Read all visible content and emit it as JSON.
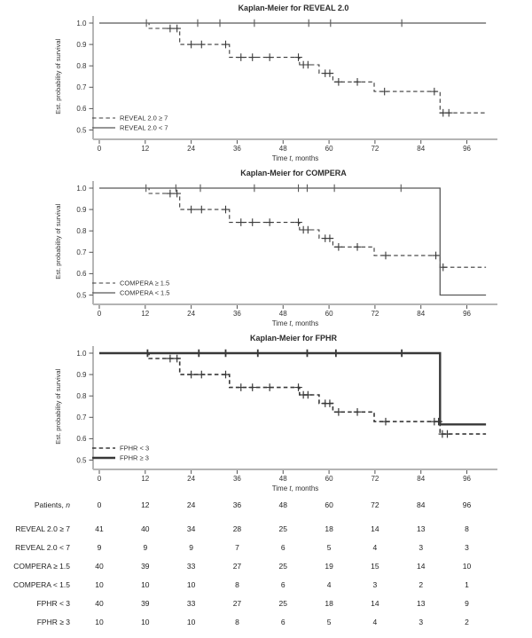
{
  "colors": {
    "ink": "#2b2b2b",
    "tick_text": "#333333",
    "y_axis": "#6e6e6e",
    "x_axis": "#b4b4b4",
    "tick_mark": "#555555",
    "dashed_line": "#3a3a3a",
    "solid_line": "#585858",
    "table_text": "#222222"
  },
  "chart_data": [
    {
      "type": "line",
      "subtype": "kaplan-meier-step",
      "title": "Kaplan-Meier for REVEAL 2.0",
      "ylabel": "Est. probability of survival",
      "xlabel": {
        "pre": "Time ",
        "var": "t",
        "post": ", months"
      },
      "xticks": [
        0,
        12,
        24,
        36,
        48,
        60,
        72,
        84,
        96
      ],
      "yticks": [
        "1.0",
        "0.9",
        "0.8",
        "0.7",
        "0.6",
        "0.5"
      ],
      "xlim": [
        0,
        101
      ],
      "ylim": [
        0.5,
        1.0
      ],
      "grid": false,
      "legend_position": "inside-bottom-left",
      "legend": [
        {
          "label": "REVEAL 2.0 ≥ 7",
          "style": "dashed"
        },
        {
          "label": "REVEAL 2.0 < 7",
          "style": "solid"
        }
      ],
      "series": [
        {
          "name": "REVEAL 2.0 ≥ 7",
          "style": "dashed",
          "lw": 1.1,
          "color": "#3a3a3a",
          "steps": [
            [
              0,
              1.0
            ],
            [
              13,
              1.0
            ],
            [
              13,
              0.975
            ],
            [
              21,
              0.975
            ],
            [
              21,
              0.9
            ],
            [
              34,
              0.9
            ],
            [
              34,
              0.84
            ],
            [
              52.3,
              0.84
            ],
            [
              52.3,
              0.805
            ],
            [
              57.4,
              0.805
            ],
            [
              57.4,
              0.765
            ],
            [
              61,
              0.765
            ],
            [
              61,
              0.725
            ],
            [
              71.8,
              0.725
            ],
            [
              71.8,
              0.68
            ],
            [
              89,
              0.68
            ],
            [
              89,
              0.58
            ],
            [
              101,
              0.58
            ]
          ],
          "censors": [
            [
              18.5,
              0.975
            ],
            [
              20.3,
              0.975
            ],
            [
              24,
              0.9
            ],
            [
              26.7,
              0.9
            ],
            [
              33,
              0.9
            ],
            [
              37,
              0.84
            ],
            [
              40,
              0.84
            ],
            [
              44.5,
              0.84
            ],
            [
              52,
              0.84
            ],
            [
              53.3,
              0.805
            ],
            [
              54.5,
              0.805
            ],
            [
              59,
              0.765
            ],
            [
              60.2,
              0.765
            ],
            [
              62.5,
              0.725
            ],
            [
              67.4,
              0.725
            ],
            [
              74.5,
              0.68
            ],
            [
              87.5,
              0.68
            ],
            [
              89.8,
              0.58
            ],
            [
              91.3,
              0.58
            ]
          ]
        },
        {
          "name": "REVEAL 2.0 < 7",
          "style": "solid",
          "lw": 1.3,
          "color": "#585858",
          "steps": [
            [
              0,
              1.0
            ],
            [
              101,
              1.0
            ]
          ],
          "censors": [
            [
              12.3,
              1.0
            ],
            [
              25.7,
              1.0
            ],
            [
              31.5,
              1.0
            ],
            [
              40.5,
              1.0
            ],
            [
              54.7,
              1.0
            ],
            [
              60.4,
              1.0
            ],
            [
              79,
              1.0
            ]
          ]
        }
      ]
    },
    {
      "type": "line",
      "subtype": "kaplan-meier-step",
      "title": "Kaplan-Meier for COMPERA",
      "ylabel": "Est. probability of survival",
      "xlabel": {
        "pre": "Time ",
        "var": "t",
        "post": ", months"
      },
      "xticks": [
        0,
        12,
        24,
        36,
        48,
        60,
        72,
        84,
        96
      ],
      "yticks": [
        "1.0",
        "0.9",
        "0.8",
        "0.7",
        "0.6",
        "0.5"
      ],
      "xlim": [
        0,
        101
      ],
      "ylim": [
        0.5,
        1.0
      ],
      "grid": false,
      "legend_position": "inside-bottom-left",
      "legend": [
        {
          "label": "COMPERA ≥ 1.5",
          "style": "dashed"
        },
        {
          "label": "COMPERA < 1.5",
          "style": "solid"
        }
      ],
      "series": [
        {
          "name": "COMPERA ≥ 1.5",
          "style": "dashed",
          "lw": 1.1,
          "color": "#3a3a3a",
          "steps": [
            [
              0,
              1.0
            ],
            [
              13,
              1.0
            ],
            [
              13,
              0.975
            ],
            [
              21,
              0.975
            ],
            [
              21,
              0.9
            ],
            [
              34,
              0.9
            ],
            [
              34,
              0.84
            ],
            [
              52.3,
              0.84
            ],
            [
              52.3,
              0.805
            ],
            [
              57.4,
              0.805
            ],
            [
              57.4,
              0.765
            ],
            [
              61,
              0.765
            ],
            [
              61,
              0.725
            ],
            [
              71.8,
              0.725
            ],
            [
              71.8,
              0.685
            ],
            [
              89,
              0.685
            ],
            [
              89,
              0.63
            ],
            [
              101,
              0.63
            ]
          ],
          "censors": [
            [
              18.5,
              0.975
            ],
            [
              20.3,
              0.975
            ],
            [
              24,
              0.9
            ],
            [
              26.7,
              0.9
            ],
            [
              33,
              0.9
            ],
            [
              37,
              0.84
            ],
            [
              40,
              0.84
            ],
            [
              44.5,
              0.84
            ],
            [
              52,
              0.84
            ],
            [
              53.3,
              0.805
            ],
            [
              54.5,
              0.805
            ],
            [
              59,
              0.765
            ],
            [
              60.2,
              0.765
            ],
            [
              62.5,
              0.725
            ],
            [
              67.4,
              0.725
            ],
            [
              74.8,
              0.685
            ],
            [
              87.9,
              0.685
            ],
            [
              89.8,
              0.63
            ]
          ]
        },
        {
          "name": "COMPERA < 1.5",
          "style": "solid",
          "lw": 1.3,
          "color": "#585858",
          "steps": [
            [
              0,
              1.0
            ],
            [
              89,
              1.0
            ],
            [
              89,
              0.5
            ],
            [
              101,
              0.5
            ]
          ],
          "censors": [
            [
              12.2,
              1.0
            ],
            [
              20,
              1.0
            ],
            [
              26.4,
              1.0
            ],
            [
              40.5,
              1.0
            ],
            [
              52,
              1.0
            ],
            [
              54.3,
              1.0
            ],
            [
              61.4,
              1.0
            ],
            [
              78.8,
              1.0
            ]
          ]
        }
      ]
    },
    {
      "type": "line",
      "subtype": "kaplan-meier-step",
      "title": "Kaplan-Meier for FPHR",
      "ylabel": "Est. probability of survival",
      "xlabel": {
        "pre": "Time ",
        "var": "t",
        "post": ", months"
      },
      "xticks": [
        0,
        12,
        24,
        36,
        48,
        60,
        72,
        84,
        96
      ],
      "yticks": [
        "1.0",
        "0.9",
        "0.8",
        "0.7",
        "0.6",
        "0.5"
      ],
      "xlim": [
        0,
        101
      ],
      "ylim": [
        0.5,
        1.0
      ],
      "grid": false,
      "legend_position": "inside-bottom-left",
      "legend": [
        {
          "label": "FPHR < 3",
          "style": "dashed"
        },
        {
          "label": "FPHR ≥ 3",
          "style": "solid"
        }
      ],
      "series": [
        {
          "name": "FPHR < 3",
          "style": "dashed",
          "lw": 1.6,
          "color": "#383838",
          "steps": [
            [
              0,
              1.0
            ],
            [
              13,
              1.0
            ],
            [
              13,
              0.975
            ],
            [
              21,
              0.975
            ],
            [
              21,
              0.9
            ],
            [
              34,
              0.9
            ],
            [
              34,
              0.84
            ],
            [
              52.3,
              0.84
            ],
            [
              52.3,
              0.805
            ],
            [
              57.4,
              0.805
            ],
            [
              57.4,
              0.765
            ],
            [
              61,
              0.765
            ],
            [
              61,
              0.725
            ],
            [
              71.8,
              0.725
            ],
            [
              71.8,
              0.68
            ],
            [
              89,
              0.68
            ],
            [
              89,
              0.622
            ],
            [
              101,
              0.622
            ]
          ],
          "censors": [
            [
              18.5,
              0.975
            ],
            [
              20.3,
              0.975
            ],
            [
              24,
              0.9
            ],
            [
              26.7,
              0.9
            ],
            [
              33,
              0.9
            ],
            [
              37,
              0.84
            ],
            [
              40,
              0.84
            ],
            [
              44.5,
              0.84
            ],
            [
              52,
              0.84
            ],
            [
              53.3,
              0.805
            ],
            [
              54.5,
              0.805
            ],
            [
              59,
              0.765
            ],
            [
              60.2,
              0.765
            ],
            [
              62.5,
              0.725
            ],
            [
              67.4,
              0.725
            ],
            [
              74.8,
              0.68
            ],
            [
              87.5,
              0.68
            ],
            [
              88.6,
              0.68
            ],
            [
              89.6,
              0.622
            ],
            [
              90.9,
              0.622
            ]
          ]
        },
        {
          "name": "FPHR ≥ 3",
          "style": "solid",
          "lw": 2.4,
          "color": "#383838",
          "steps": [
            [
              0,
              1.0
            ],
            [
              89,
              1.0
            ],
            [
              89,
              0.667
            ],
            [
              101,
              0.667
            ]
          ],
          "censors": [
            [
              12.6,
              1.0
            ],
            [
              26,
              1.0
            ],
            [
              33,
              1.0
            ],
            [
              41.4,
              1.0
            ],
            [
              54.3,
              1.0
            ],
            [
              61.8,
              1.0
            ],
            [
              79,
              1.0
            ]
          ]
        }
      ]
    }
  ],
  "risk_table": {
    "corner": {
      "pre": "Patients, ",
      "var": "n"
    },
    "columns": [
      "0",
      "12",
      "24",
      "36",
      "48",
      "60",
      "72",
      "84",
      "96"
    ],
    "rows": [
      {
        "label": "REVEAL 2.0 ≥ 7",
        "values": [
          "41",
          "40",
          "34",
          "28",
          "25",
          "18",
          "14",
          "13",
          "8"
        ]
      },
      {
        "label": "REVEAL 2.0 < 7",
        "values": [
          "9",
          "9",
          "9",
          "7",
          "6",
          "5",
          "4",
          "3",
          "3"
        ]
      },
      {
        "label": "COMPERA ≥ 1.5",
        "values": [
          "40",
          "39",
          "33",
          "27",
          "25",
          "19",
          "15",
          "14",
          "10"
        ]
      },
      {
        "label": "COMPERA < 1.5",
        "values": [
          "10",
          "10",
          "10",
          "8",
          "6",
          "4",
          "3",
          "2",
          "1"
        ]
      },
      {
        "label": "FPHR < 3",
        "values": [
          "40",
          "39",
          "33",
          "27",
          "25",
          "18",
          "14",
          "13",
          "9"
        ]
      },
      {
        "label": "FPHR ≥ 3",
        "values": [
          "10",
          "10",
          "10",
          "8",
          "6",
          "5",
          "4",
          "3",
          "2"
        ]
      }
    ]
  }
}
